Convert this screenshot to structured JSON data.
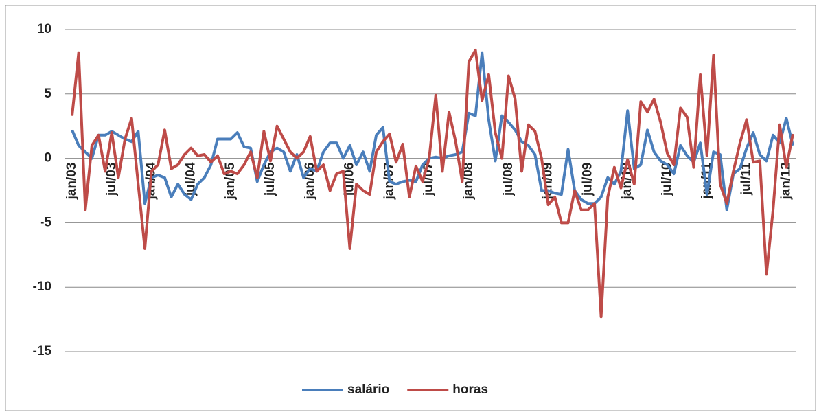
{
  "chart_data": {
    "type": "line",
    "categories": [
      "jan/03",
      null,
      null,
      null,
      null,
      null,
      "jul/03",
      null,
      null,
      null,
      null,
      null,
      "jan/04",
      null,
      null,
      null,
      null,
      null,
      "jul/04",
      null,
      null,
      null,
      null,
      null,
      "jan/05",
      null,
      null,
      null,
      null,
      null,
      "jul/05",
      null,
      null,
      null,
      null,
      null,
      "jan/06",
      null,
      null,
      null,
      null,
      null,
      "jul/06",
      null,
      null,
      null,
      null,
      null,
      "jan/07",
      null,
      null,
      null,
      null,
      null,
      "jul/07",
      null,
      null,
      null,
      null,
      null,
      "jan/08",
      null,
      null,
      null,
      null,
      null,
      "jul/08",
      null,
      null,
      null,
      null,
      null,
      "jan/09",
      null,
      null,
      null,
      null,
      null,
      "jul/09",
      null,
      null,
      null,
      null,
      null,
      "jan/10",
      null,
      null,
      null,
      null,
      null,
      "jul/10",
      null,
      null,
      null,
      null,
      null,
      "jan/11",
      null,
      null,
      null,
      null,
      null,
      "jul/11",
      null,
      null,
      null,
      null,
      null,
      "jan/12",
      null
    ],
    "series": [
      {
        "name": "salário",
        "color": "#4a7ebb",
        "values": [
          2.2,
          1.0,
          0.5,
          0.0,
          1.8,
          1.8,
          2.1,
          1.8,
          1.5,
          1.3,
          2.1,
          -3.5,
          -1.5,
          -1.3,
          -1.5,
          -3.0,
          -2.0,
          -2.8,
          -3.2,
          -2.0,
          -1.5,
          -0.5,
          1.5,
          1.5,
          1.5,
          2.0,
          0.9,
          0.8,
          -1.8,
          -0.5,
          0.5,
          0.8,
          0.5,
          -1.0,
          0.3,
          -1.5,
          -0.8,
          -1.0,
          0.5,
          1.2,
          1.2,
          0.0,
          1.0,
          -0.5,
          0.5,
          -1.0,
          1.8,
          2.4,
          -1.8,
          -2.0,
          -1.8,
          -1.7,
          -1.8,
          -0.5,
          0.0,
          0.1,
          0.0,
          0.2,
          0.3,
          0.5,
          3.5,
          3.3,
          8.2,
          3.0,
          -0.2,
          3.3,
          2.8,
          2.2,
          1.3,
          1.0,
          0.3,
          -2.5,
          -2.5,
          -2.7,
          -2.8,
          0.7,
          -2.5,
          -3.2,
          -3.5,
          -3.5,
          -3.0,
          -1.5,
          -2.0,
          -1.0,
          3.7,
          -0.8,
          -0.5,
          2.2,
          0.5,
          -0.2,
          -0.5,
          -1.2,
          1.0,
          0.2,
          -0.3,
          1.2,
          -2.8,
          0.5,
          0.3,
          -4.0,
          -1.2,
          -0.8,
          0.8,
          2.0,
          0.3,
          -0.2,
          1.8,
          1.2,
          3.1,
          1.0
        ]
      },
      {
        "name": "horas",
        "color": "#be4b48",
        "values": [
          3.3,
          8.2,
          -4.0,
          1.0,
          1.8,
          -1.0,
          2.0,
          -1.5,
          1.5,
          3.1,
          -2.0,
          -7.0,
          -1.0,
          -0.5,
          2.2,
          -0.8,
          -0.5,
          0.3,
          0.8,
          0.2,
          0.3,
          -0.3,
          0.2,
          -1.2,
          -1.0,
          -1.2,
          -0.5,
          0.5,
          -1.5,
          2.1,
          -0.2,
          2.5,
          1.5,
          0.5,
          0.0,
          0.5,
          1.7,
          -1.0,
          -0.5,
          -2.5,
          -1.2,
          -1.0,
          -7.0,
          -2.0,
          -2.5,
          -2.8,
          0.5,
          1.3,
          1.9,
          -0.3,
          1.1,
          -3.0,
          -0.6,
          -1.8,
          0.0,
          4.9,
          -1.0,
          3.6,
          1.3,
          -1.8,
          7.5,
          8.4,
          4.5,
          6.5,
          2.0,
          0.0,
          6.4,
          4.6,
          -1.0,
          2.6,
          2.1,
          0.0,
          -3.6,
          -3.0,
          -5.0,
          -5.0,
          -2.5,
          -4.0,
          -4.0,
          -3.5,
          -12.3,
          -3.0,
          -0.7,
          -2.3,
          -0.1,
          -2.0,
          4.4,
          3.6,
          4.6,
          2.8,
          0.4,
          -0.5,
          3.9,
          3.2,
          -0.7,
          6.5,
          0.2,
          8.0,
          -2.0,
          -3.5,
          -1.0,
          1.2,
          3.0,
          -0.3,
          -0.2,
          -9.0,
          -4.0,
          2.6,
          -0.7,
          1.9
        ]
      }
    ],
    "ylim": [
      -15,
      10
    ],
    "yticks": [
      -15,
      -10,
      -5,
      0,
      5,
      10
    ],
    "grid": true,
    "legend": "bottom"
  }
}
